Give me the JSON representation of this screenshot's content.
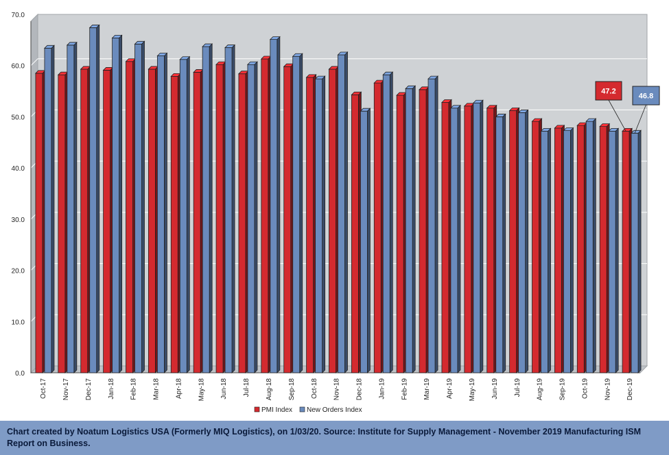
{
  "chart_data": {
    "type": "bar",
    "categories": [
      "Oct-17",
      "Nov-17",
      "Dec-17",
      "Jan-18",
      "Feb-18",
      "Mar-18",
      "Apr-18",
      "May-18",
      "Jun-18",
      "Jul-18",
      "Aug-18",
      "Sep-18",
      "Oct-18",
      "Nov-18",
      "Dec-18",
      "Jan-19",
      "Feb-19",
      "Mar-19",
      "Apr-19",
      "May-19",
      "Jun-19",
      "Jul-19",
      "Aug-19",
      "Sep-19",
      "Oct-19",
      "Nov-19",
      "Dec-19"
    ],
    "series": [
      {
        "name": "PMI Index",
        "color": "#d42a2f",
        "values": [
          58.5,
          58.2,
          59.3,
          59.1,
          60.8,
          59.3,
          57.9,
          58.7,
          60.2,
          58.4,
          61.3,
          59.8,
          57.7,
          59.3,
          54.3,
          56.6,
          54.2,
          55.3,
          52.8,
          52.1,
          51.7,
          51.2,
          49.1,
          47.8,
          48.3,
          48.1,
          47.2
        ]
      },
      {
        "name": "New Orders Index",
        "color": "#6a8bbd",
        "values": [
          63.4,
          64.0,
          67.4,
          65.4,
          64.2,
          61.9,
          61.2,
          63.7,
          63.5,
          60.2,
          65.1,
          61.8,
          57.4,
          62.1,
          51.1,
          58.2,
          55.5,
          57.4,
          51.7,
          52.7,
          50.0,
          50.8,
          47.2,
          47.3,
          49.1,
          47.2,
          46.8
        ]
      }
    ],
    "ylim": [
      0,
      70
    ],
    "yticks": [
      "0.0",
      "10.0",
      "20.0",
      "30.0",
      "40.0",
      "50.0",
      "60.0",
      "70.0"
    ],
    "legend_position": "bottom",
    "grid": true,
    "callouts": [
      {
        "text": "47.2",
        "series": 0,
        "category": "Dec-19",
        "color": "#d42a2f"
      },
      {
        "text": "46.8",
        "series": 1,
        "category": "Dec-19",
        "color": "#6a8bbd"
      }
    ]
  },
  "footer": {
    "text": "Chart created by Noatum Logistics USA (Formerly MIQ Logistics), on 1/03/20. Source: Institute for Supply Management - November 2019 Manufacturing ISM Report on Business."
  }
}
